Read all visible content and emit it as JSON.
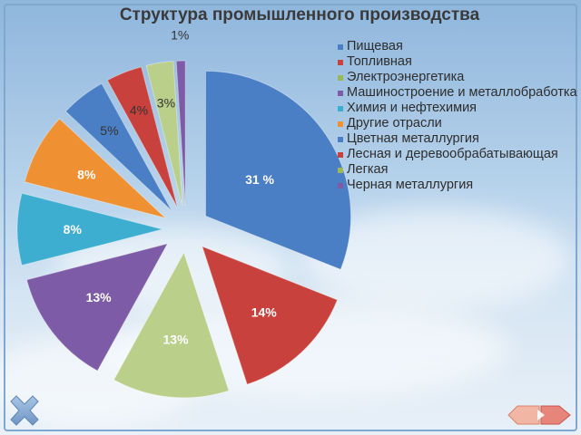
{
  "chart_data": {
    "type": "pie",
    "title": "Структура промышленного производства",
    "categories": [
      "Пищевая",
      "Топливная",
      "Электроэнергетика",
      "Машиностроение и металлобработка",
      "Химия и нефтехимия",
      "Другие отрасли",
      "Цветная металлургия",
      "Лесная и деревообрабатывающая",
      "Легкая",
      "Черная металлургия"
    ],
    "values": [
      31,
      14,
      13,
      13,
      8,
      8,
      5,
      4,
      3,
      1
    ],
    "data_labels": [
      "31 %",
      "14%",
      "13%",
      "13%",
      "8%",
      "8%",
      "5%",
      "4%",
      "3%",
      "1%"
    ],
    "colors": [
      "#4a7fc6",
      "#c8413c",
      "#b9cf8a",
      "#7e5ba6",
      "#3eaed0",
      "#ef9032",
      "#4a7fc6",
      "#c8413c",
      "#b9cf8a",
      "#7e5ba6"
    ],
    "legend_position": "right",
    "exploded": true
  },
  "legend": [
    {
      "label": "Пищевая",
      "color": "#4a7fc6"
    },
    {
      "label": "Топливная",
      "color": "#c8413c"
    },
    {
      "label": "Электроэнергетика",
      "color": "#9ab75a"
    },
    {
      "label": "Машиностроение и металлобработка",
      "color": "#7e5ba6"
    },
    {
      "label": "Химия и нефтехимия",
      "color": "#3eaed0"
    },
    {
      "label": "Другие отрасли",
      "color": "#ef9032"
    },
    {
      "label": "Цветная металлургия",
      "color": "#4a7fc6"
    },
    {
      "label": "Лесная и деревообрабатывающая",
      "color": "#c8413c"
    },
    {
      "label": "Легкая",
      "color": "#9ab75a"
    },
    {
      "label": "Черная металлургия",
      "color": "#7e5ba6"
    }
  ],
  "nav": {
    "close_icon": "close-x-icon",
    "prev_icon": "arrow-left-icon",
    "next_icon": "arrow-right-icon"
  }
}
